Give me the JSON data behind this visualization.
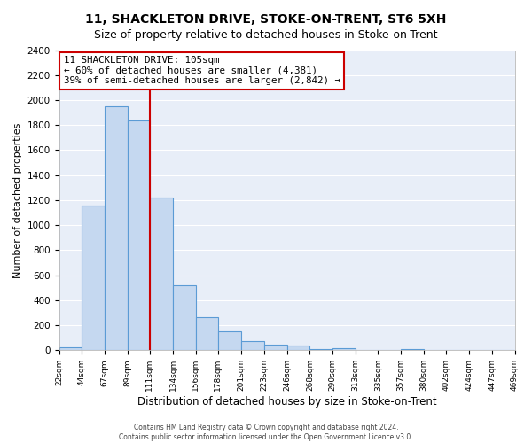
{
  "title": "11, SHACKLETON DRIVE, STOKE-ON-TRENT, ST6 5XH",
  "subtitle": "Size of property relative to detached houses in Stoke-on-Trent",
  "xlabel": "Distribution of detached houses by size in Stoke-on-Trent",
  "ylabel": "Number of detached properties",
  "bin_edges": [
    22,
    44,
    67,
    89,
    111,
    134,
    156,
    178,
    201,
    223,
    246,
    268,
    290,
    313,
    335,
    357,
    380,
    402,
    424,
    447,
    469
  ],
  "bin_counts": [
    25,
    1155,
    1950,
    1840,
    1220,
    520,
    265,
    148,
    75,
    45,
    40,
    10,
    15,
    5,
    5,
    12,
    2,
    5,
    2,
    2
  ],
  "bar_color": "#c5d8f0",
  "bar_edge_color": "#5b9bd5",
  "vline_x": 111,
  "vline_color": "#cc0000",
  "annotation_line1": "11 SHACKLETON DRIVE: 105sqm",
  "annotation_line2": "← 60% of detached houses are smaller (4,381)",
  "annotation_line3": "39% of semi-detached houses are larger (2,842) →",
  "box_color": "#cc0000",
  "ylim": [
    0,
    2400
  ],
  "yticks": [
    0,
    200,
    400,
    600,
    800,
    1000,
    1200,
    1400,
    1600,
    1800,
    2000,
    2200,
    2400
  ],
  "tick_labels": [
    "22sqm",
    "44sqm",
    "67sqm",
    "89sqm",
    "111sqm",
    "134sqm",
    "156sqm",
    "178sqm",
    "201sqm",
    "223sqm",
    "246sqm",
    "268sqm",
    "290sqm",
    "313sqm",
    "335sqm",
    "357sqm",
    "380sqm",
    "402sqm",
    "424sqm",
    "447sqm",
    "469sqm"
  ],
  "footer1": "Contains HM Land Registry data © Crown copyright and database right 2024.",
  "footer2": "Contains public sector information licensed under the Open Government Licence v3.0.",
  "bg_color": "#ffffff",
  "plot_bg_color": "#e8eef8",
  "grid_color": "#ffffff",
  "title_fontsize": 10,
  "subtitle_fontsize": 9
}
